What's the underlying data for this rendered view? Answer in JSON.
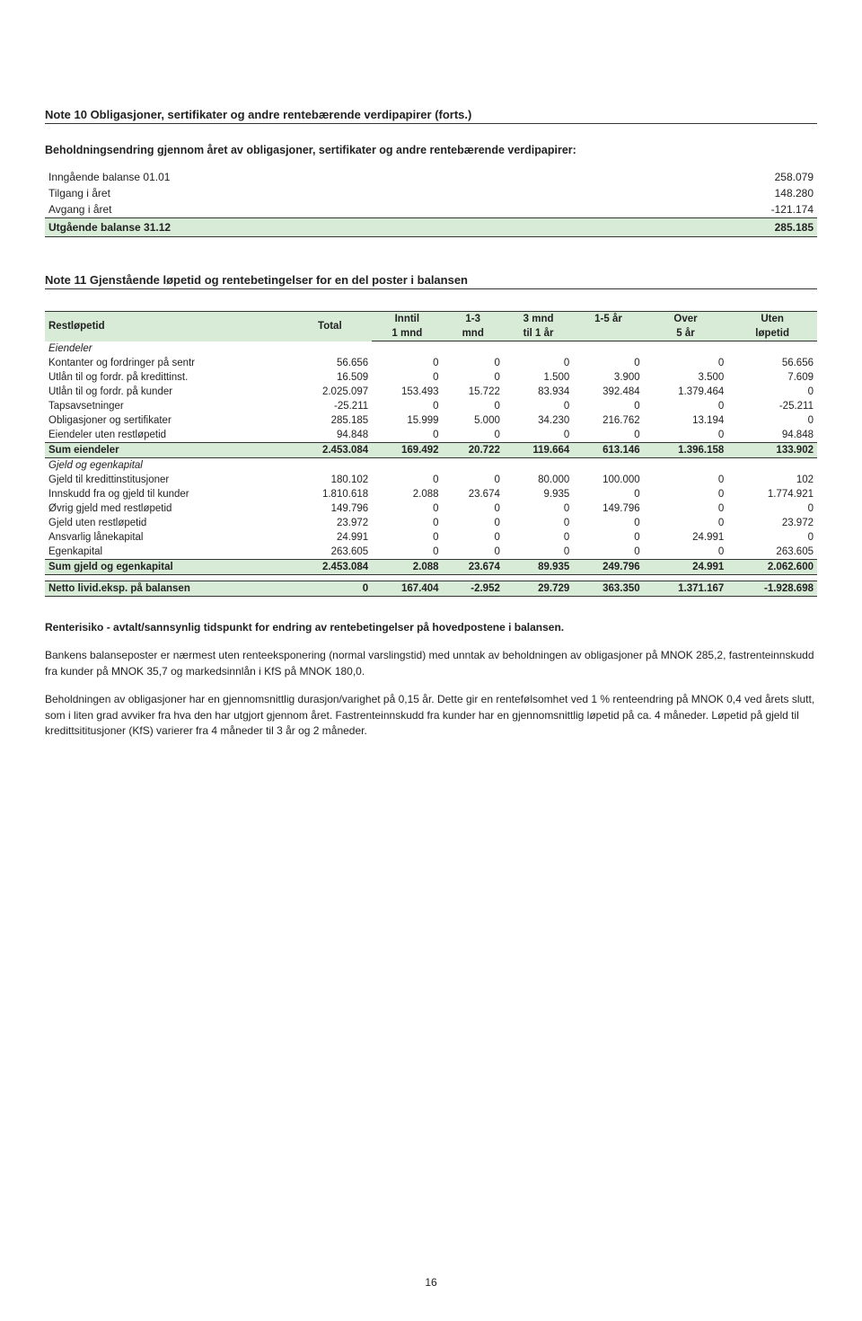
{
  "note10": {
    "title": "Note 10 Obligasjoner, sertifikater og andre rentebærende verdipapirer (forts.)",
    "subheading": "Beholdningsendring gjennom året av obligasjoner, sertifikater og andre rentebærende verdipapirer:",
    "rows": [
      {
        "label": "Inngående balanse 01.01",
        "value": "258.079"
      },
      {
        "label": "Tilgang i året",
        "value": "148.280"
      },
      {
        "label": "Avgang i året",
        "value": "-121.174"
      }
    ],
    "total": {
      "label": "Utgående balanse 31.12",
      "value": "285.185"
    }
  },
  "note11": {
    "title": "Note 11 Gjenstående løpetid og rentebetingelser for en del poster i balansen",
    "header": {
      "col0": "Restløpetid",
      "col1": "Total",
      "col2a": "Inntil",
      "col2b": "1 mnd",
      "col3a": "1-3",
      "col3b": "mnd",
      "col4a": "3 mnd",
      "col4b": "til 1 år",
      "col5a": "1-5 år",
      "col5b": "",
      "col6a": "Over",
      "col6b": "5 år",
      "col7a": "Uten",
      "col7b": "løpetid"
    },
    "sections": [
      {
        "heading": "Eiendeler",
        "rows": [
          {
            "label": "Kontanter og fordringer på sentr",
            "v": [
              "56.656",
              "0",
              "0",
              "0",
              "0",
              "0",
              "56.656"
            ]
          },
          {
            "label": "Utlån til og fordr. på kredittinst.",
            "v": [
              "16.509",
              "0",
              "0",
              "1.500",
              "3.900",
              "3.500",
              "7.609"
            ]
          },
          {
            "label": "Utlån til og fordr. på kunder",
            "v": [
              "2.025.097",
              "153.493",
              "15.722",
              "83.934",
              "392.484",
              "1.379.464",
              "0"
            ]
          },
          {
            "label": "Tapsavsetninger",
            "v": [
              "-25.211",
              "0",
              "0",
              "0",
              "0",
              "0",
              "-25.211"
            ]
          },
          {
            "label": "Obligasjoner og sertifikater",
            "v": [
              "285.185",
              "15.999",
              "5.000",
              "34.230",
              "216.762",
              "13.194",
              "0"
            ]
          },
          {
            "label": "Eiendeler uten restløpetid",
            "v": [
              "94.848",
              "0",
              "0",
              "0",
              "0",
              "0",
              "94.848"
            ]
          }
        ],
        "sum": {
          "label": "Sum eiendeler",
          "v": [
            "2.453.084",
            "169.492",
            "20.722",
            "119.664",
            "613.146",
            "1.396.158",
            "133.902"
          ]
        }
      },
      {
        "heading": "Gjeld og egenkapital",
        "rows": [
          {
            "label": "Gjeld til kredittinstitusjoner",
            "v": [
              "180.102",
              "0",
              "0",
              "80.000",
              "100.000",
              "0",
              "102"
            ]
          },
          {
            "label": "Innskudd fra og gjeld til kunder",
            "v": [
              "1.810.618",
              "2.088",
              "23.674",
              "9.935",
              "0",
              "0",
              "1.774.921"
            ]
          },
          {
            "label": "Øvrig gjeld med restløpetid",
            "v": [
              "149.796",
              "0",
              "0",
              "0",
              "149.796",
              "0",
              "0"
            ]
          },
          {
            "label": "Gjeld uten restløpetid",
            "v": [
              "23.972",
              "0",
              "0",
              "0",
              "0",
              "0",
              "23.972"
            ]
          },
          {
            "label": "Ansvarlig lånekapital",
            "v": [
              "24.991",
              "0",
              "0",
              "0",
              "0",
              "24.991",
              "0"
            ]
          },
          {
            "label": "Egenkapital",
            "v": [
              "263.605",
              "0",
              "0",
              "0",
              "0",
              "0",
              "263.605"
            ]
          }
        ],
        "sum": {
          "label": "Sum gjeld og egenkapital",
          "v": [
            "2.453.084",
            "2.088",
            "23.674",
            "89.935",
            "249.796",
            "24.991",
            "2.062.600"
          ]
        }
      }
    ],
    "netto": {
      "label": "Netto livid.eksp. på balansen",
      "v": [
        "0",
        "167.404",
        "-2.952",
        "29.729",
        "363.350",
        "1.371.167",
        "-1.928.698"
      ]
    }
  },
  "bodytext": {
    "heading": "Renterisiko - avtalt/sannsynlig tidspunkt for endring av rentebetingelser på hovedpostene i balansen.",
    "p1": "Bankens balanseposter er nærmest uten renteeksponering (normal varslingstid) med unntak av beholdningen av obligasjoner på MNOK 285,2, fastrenteinnskudd fra kunder på MNOK 35,7 og markedsinnlån i KfS på MNOK 180,0.",
    "p2": "Beholdningen av obligasjoner har en gjennomsnittlig durasjon/varighet på 0,15 år. Dette gir en rentefølsomhet ved 1 % renteendring på MNOK 0,4 ved årets slutt, som i liten grad avviker fra hva den har utgjort gjennom året. Fastrenteinnskudd fra kunder har en gjennomsnittlig løpetid på ca. 4 måneder. Løpetid på gjeld til kredittsititusjoner (KfS) varierer fra 4 måneder til 3 år og 2 måneder."
  },
  "page_number": "16"
}
